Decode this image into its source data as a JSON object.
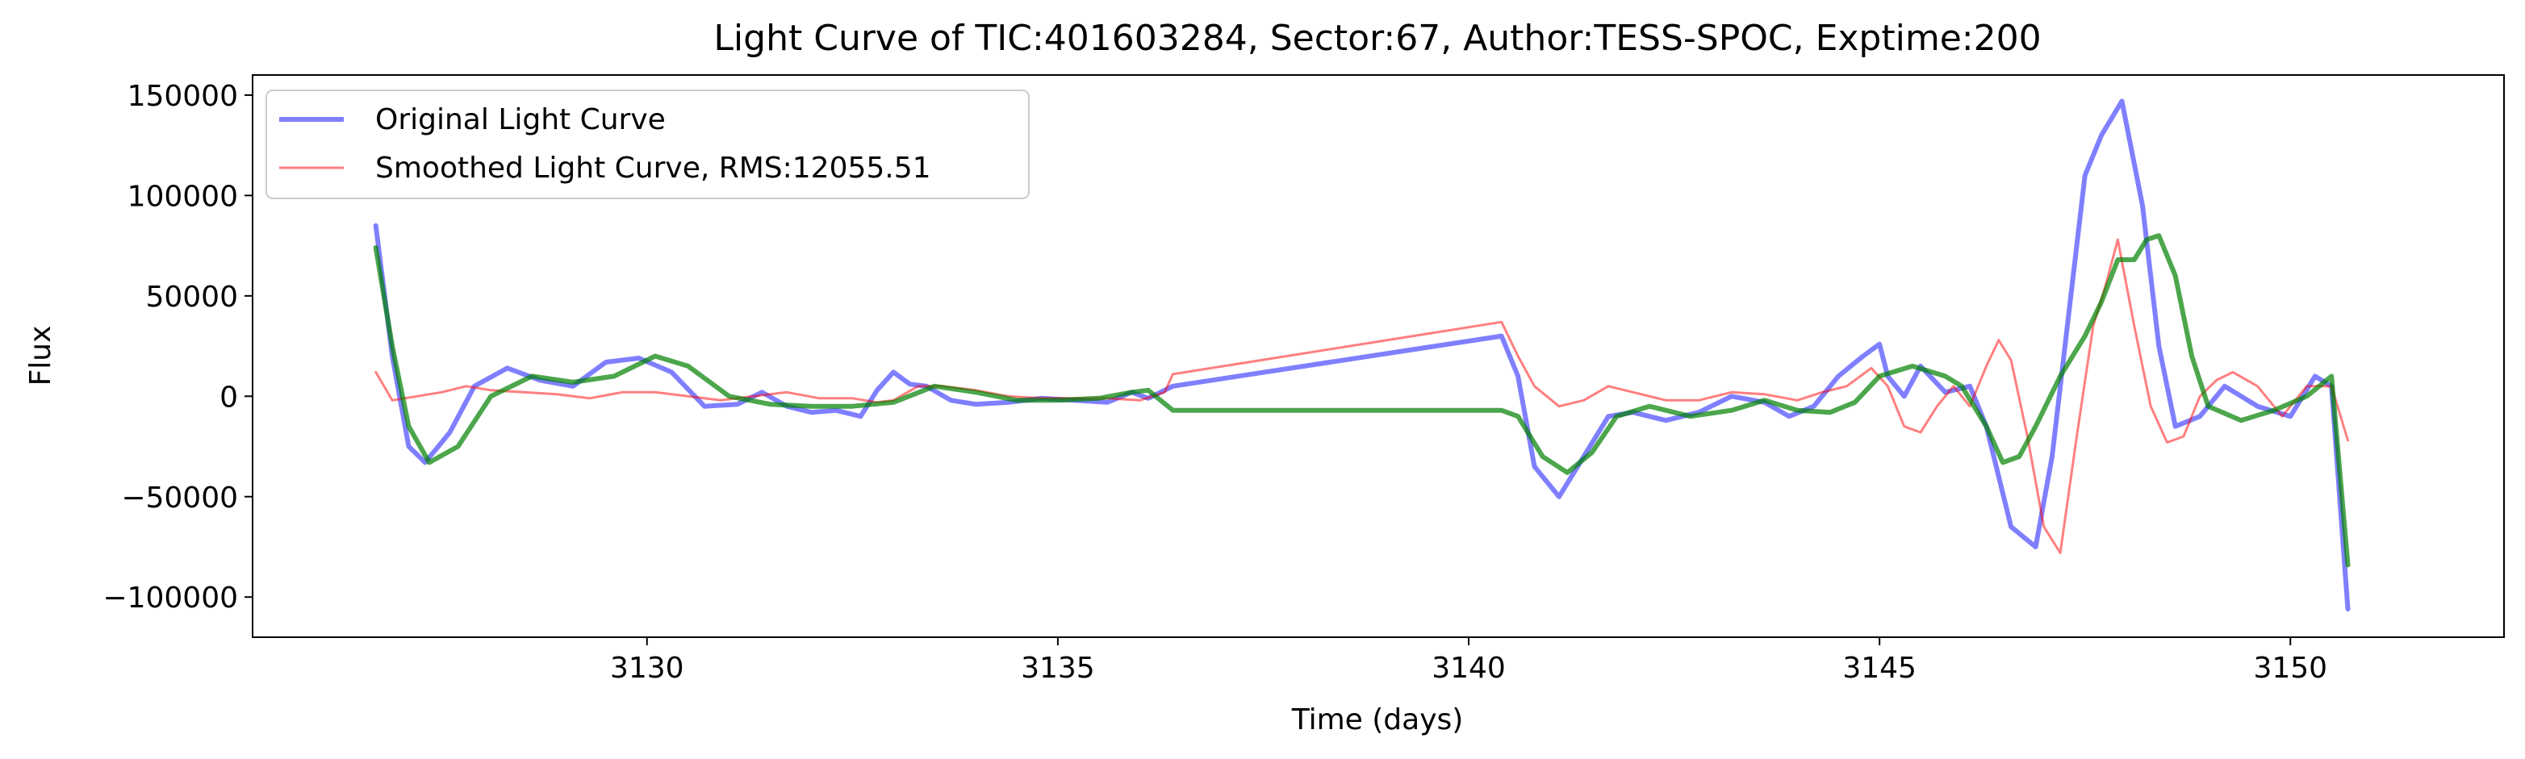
{
  "chart_data": {
    "type": "line",
    "title": "Light Curve of TIC:401603284, Sector:67, Author:TESS-SPOC, Exptime:200",
    "xlabel": "Time (days)",
    "ylabel": "Flux",
    "xlim": [
      3125.2,
      3152.6
    ],
    "ylim": [
      -120000,
      160000
    ],
    "xticks": [
      3130,
      3135,
      3140,
      3145,
      3150
    ],
    "xtick_labels": [
      "3130",
      "3135",
      "3140",
      "3145",
      "3150"
    ],
    "yticks": [
      -100000,
      -50000,
      0,
      50000,
      100000,
      150000
    ],
    "ytick_labels": [
      "−100000",
      "−50000",
      "0",
      "50000",
      "100000",
      "150000"
    ],
    "grid": false,
    "legend_placement": "top-left",
    "series": [
      {
        "name": "Original Light Curve",
        "color": "#0000ff",
        "opacity": 0.5,
        "style": "thick",
        "in_legend": true,
        "x": [
          3126.7,
          3126.9,
          3127.1,
          3127.3,
          3127.6,
          3127.9,
          3128.3,
          3128.7,
          3129.1,
          3129.5,
          3129.9,
          3130.3,
          3130.7,
          3131.1,
          3131.4,
          3131.7,
          3132.0,
          3132.3,
          3132.6,
          3132.8,
          3133.0,
          3133.2,
          3133.4,
          3133.7,
          3134.0,
          3134.4,
          3134.8,
          3135.2,
          3135.6,
          3135.9,
          3136.1,
          3136.4,
          3140.4,
          3140.6,
          3140.8,
          3141.1,
          3141.4,
          3141.7,
          3142.0,
          3142.4,
          3142.8,
          3143.2,
          3143.6,
          3143.9,
          3144.2,
          3144.5,
          3144.8,
          3145.0,
          3145.1,
          3145.3,
          3145.5,
          3145.8,
          3146.1,
          3146.3,
          3146.6,
          3146.9,
          3147.1,
          3147.3,
          3147.5,
          3147.7,
          3147.95,
          3148.2,
          3148.4,
          3148.6,
          3148.9,
          3149.2,
          3149.6,
          3150.0,
          3150.3,
          3150.5,
          3150.7
        ],
        "y": [
          85000,
          20000,
          -25000,
          -33000,
          -18000,
          5000,
          14000,
          8000,
          5000,
          17000,
          19000,
          12000,
          -5000,
          -4000,
          2000,
          -5000,
          -8000,
          -7000,
          -10000,
          3000,
          12000,
          6000,
          5000,
          -2000,
          -4000,
          -3000,
          -1000,
          -2000,
          -3000,
          2000,
          -1000,
          5000,
          30000,
          10000,
          -35000,
          -50000,
          -30000,
          -10000,
          -8000,
          -12000,
          -8000,
          0,
          -3000,
          -10000,
          -5000,
          10000,
          20000,
          26000,
          10000,
          0,
          15000,
          2000,
          5000,
          -15000,
          -65000,
          -75000,
          -30000,
          40000,
          110000,
          130000,
          147000,
          95000,
          25000,
          -15000,
          -10000,
          5000,
          -5000,
          -10000,
          10000,
          5000,
          -106000
        ]
      },
      {
        "name": "Smoothed Light Curve, RMS:12055.51",
        "color": "#ff0000",
        "opacity": 0.5,
        "style": "thin",
        "in_legend": true,
        "x": [
          3126.7,
          3126.9,
          3127.2,
          3127.5,
          3127.8,
          3128.1,
          3128.5,
          3128.9,
          3129.3,
          3129.7,
          3130.1,
          3130.5,
          3130.9,
          3131.3,
          3131.7,
          3132.1,
          3132.5,
          3132.8,
          3133.0,
          3133.3,
          3133.6,
          3134.0,
          3134.4,
          3134.8,
          3135.2,
          3135.6,
          3136.0,
          3136.3,
          3136.4,
          3140.4,
          3140.6,
          3140.8,
          3141.1,
          3141.4,
          3141.7,
          3142.0,
          3142.4,
          3142.8,
          3143.2,
          3143.6,
          3144.0,
          3144.3,
          3144.6,
          3144.9,
          3145.1,
          3145.3,
          3145.5,
          3145.7,
          3145.9,
          3146.1,
          3146.3,
          3146.45,
          3146.6,
          3146.8,
          3147.0,
          3147.2,
          3147.4,
          3147.6,
          3147.75,
          3147.9,
          3148.1,
          3148.3,
          3148.5,
          3148.7,
          3148.9,
          3149.1,
          3149.3,
          3149.6,
          3149.9,
          3150.2,
          3150.5,
          3150.7
        ],
        "y": [
          12000,
          -2000,
          0,
          2000,
          5000,
          3000,
          2000,
          1000,
          -1000,
          2000,
          2000,
          0,
          -2000,
          0,
          2000,
          -1000,
          -1000,
          -3000,
          -2000,
          5000,
          5000,
          3000,
          0,
          -1000,
          -1000,
          -1000,
          -2000,
          2000,
          11000,
          37000,
          20000,
          5000,
          -5000,
          -2000,
          5000,
          2000,
          -2000,
          -2000,
          2000,
          1000,
          -2000,
          2000,
          5000,
          14000,
          5000,
          -15000,
          -18000,
          -5000,
          5000,
          -5000,
          15000,
          28000,
          18000,
          -20000,
          -65000,
          -78000,
          -20000,
          35000,
          55000,
          78000,
          35000,
          -5000,
          -23000,
          -20000,
          0,
          8000,
          12000,
          5000,
          -10000,
          5000,
          5000,
          -22000
        ]
      },
      {
        "name": "",
        "color": "#008000",
        "opacity": 0.7,
        "style": "thick",
        "in_legend": false,
        "x": [
          3126.7,
          3126.9,
          3127.1,
          3127.35,
          3127.7,
          3128.1,
          3128.6,
          3129.1,
          3129.6,
          3130.1,
          3130.5,
          3131.0,
          3131.5,
          3132.0,
          3132.5,
          3133.0,
          3133.5,
          3134.0,
          3134.5,
          3135.0,
          3135.5,
          3135.9,
          3136.1,
          3136.4,
          3140.4,
          3140.6,
          3140.9,
          3141.2,
          3141.5,
          3141.8,
          3142.2,
          3142.7,
          3143.2,
          3143.6,
          3144.0,
          3144.4,
          3144.7,
          3145.0,
          3145.4,
          3145.8,
          3146.0,
          3146.3,
          3146.5,
          3146.7,
          3146.9,
          3147.2,
          3147.5,
          3147.7,
          3147.9,
          3148.1,
          3148.25,
          3148.4,
          3148.6,
          3148.8,
          3149.0,
          3149.4,
          3149.8,
          3150.2,
          3150.5,
          3150.7
        ],
        "y": [
          74000,
          25000,
          -15000,
          -33000,
          -25000,
          0,
          10000,
          7000,
          10000,
          20000,
          15000,
          0,
          -4000,
          -5000,
          -5000,
          -3000,
          5000,
          2000,
          -2000,
          -2000,
          -1000,
          2000,
          3000,
          -7000,
          -7000,
          -10000,
          -30000,
          -38000,
          -28000,
          -10000,
          -5000,
          -10000,
          -7000,
          -2000,
          -7000,
          -8000,
          -3000,
          10000,
          15000,
          10000,
          5000,
          -15000,
          -33000,
          -30000,
          -15000,
          10000,
          30000,
          47000,
          68000,
          68000,
          78000,
          80000,
          60000,
          20000,
          -5000,
          -12000,
          -7000,
          0,
          10000,
          -84000
        ]
      }
    ]
  }
}
